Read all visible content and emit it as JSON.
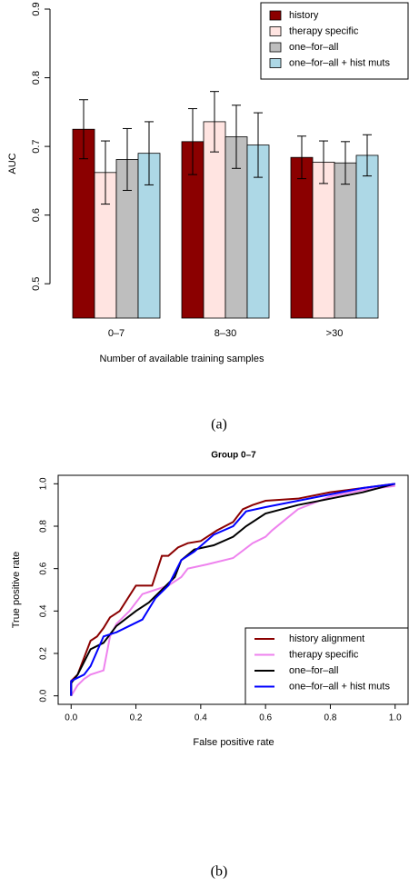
{
  "chart_data": [
    {
      "type": "bar",
      "y_label": "AUC",
      "x_label": "Number of available training samples",
      "caption": "(a)",
      "categories": [
        "0–7",
        "8–30",
        ">30"
      ],
      "series": [
        {
          "name": "history",
          "color": "#8b0000",
          "values": [
            0.725,
            0.707,
            0.684
          ],
          "errors": [
            0.043,
            0.048,
            0.031
          ]
        },
        {
          "name": "therapy specific",
          "color": "#ffe4e1",
          "values": [
            0.662,
            0.736,
            0.677
          ],
          "errors": [
            0.046,
            0.044,
            0.031
          ]
        },
        {
          "name": "one–for–all",
          "color": "#bebebe",
          "values": [
            0.681,
            0.714,
            0.676
          ],
          "errors": [
            0.045,
            0.046,
            0.031
          ]
        },
        {
          "name": "one–for–all + hist muts",
          "color": "#add8e6",
          "values": [
            0.69,
            0.702,
            0.687
          ],
          "errors": [
            0.046,
            0.047,
            0.03
          ]
        }
      ],
      "ylim": [
        0.45,
        0.9
      ],
      "yticks": [
        0.5,
        0.6,
        0.7,
        0.8,
        0.9
      ],
      "legend": "top-right"
    },
    {
      "type": "line",
      "title": "Group 0–7",
      "x_label": "False positive rate",
      "y_label": "True positive rate",
      "caption": "(b)",
      "series": [
        {
          "name": "history alignment",
          "color": "#8b0000",
          "x": [
            0,
            0,
            0.02,
            0.04,
            0.06,
            0.08,
            0.1,
            0.12,
            0.15,
            0.2,
            0.25,
            0.28,
            0.3,
            0.33,
            0.36,
            0.4,
            0.45,
            0.5,
            0.53,
            0.56,
            0.6,
            0.7,
            0.8,
            0.9,
            1.0
          ],
          "values": [
            0,
            0.07,
            0.1,
            0.18,
            0.26,
            0.28,
            0.32,
            0.37,
            0.4,
            0.52,
            0.52,
            0.66,
            0.66,
            0.7,
            0.72,
            0.73,
            0.78,
            0.82,
            0.88,
            0.9,
            0.92,
            0.93,
            0.96,
            0.98,
            1.0
          ]
        },
        {
          "name": "therapy specific",
          "color": "#ee82ee",
          "x": [
            0,
            0.02,
            0.04,
            0.06,
            0.1,
            0.12,
            0.14,
            0.18,
            0.22,
            0.26,
            0.3,
            0.34,
            0.36,
            0.42,
            0.5,
            0.56,
            0.6,
            0.62,
            0.7,
            0.8,
            0.9,
            1.0
          ],
          "values": [
            0,
            0.05,
            0.08,
            0.1,
            0.12,
            0.28,
            0.34,
            0.4,
            0.48,
            0.5,
            0.52,
            0.56,
            0.6,
            0.62,
            0.65,
            0.72,
            0.75,
            0.78,
            0.88,
            0.94,
            0.97,
            0.99
          ]
        },
        {
          "name": "one–for–all",
          "color": "#000000",
          "x": [
            0,
            0,
            0.02,
            0.06,
            0.1,
            0.14,
            0.2,
            0.24,
            0.28,
            0.32,
            0.34,
            0.38,
            0.44,
            0.5,
            0.54,
            0.6,
            0.7,
            0.8,
            0.9,
            1.0
          ],
          "values": [
            0,
            0.06,
            0.1,
            0.22,
            0.25,
            0.33,
            0.4,
            0.44,
            0.5,
            0.56,
            0.64,
            0.69,
            0.71,
            0.75,
            0.8,
            0.86,
            0.9,
            0.93,
            0.96,
            1.0
          ]
        },
        {
          "name": "one–for–all + hist muts",
          "color": "#0000ff",
          "x": [
            0,
            0,
            0.04,
            0.06,
            0.1,
            0.14,
            0.18,
            0.22,
            0.26,
            0.3,
            0.34,
            0.38,
            0.44,
            0.5,
            0.54,
            0.6,
            0.7,
            0.8,
            0.9,
            1.0
          ],
          "values": [
            0,
            0.07,
            0.1,
            0.14,
            0.28,
            0.3,
            0.33,
            0.36,
            0.46,
            0.52,
            0.64,
            0.68,
            0.76,
            0.8,
            0.87,
            0.89,
            0.92,
            0.95,
            0.98,
            1.0
          ]
        }
      ],
      "xlim": [
        -0.04,
        1.04
      ],
      "ylim": [
        -0.04,
        1.04
      ],
      "xticks": [
        {
          "value": 0,
          "label": "0.0"
        },
        0.2,
        0.4,
        0.6,
        0.8,
        {
          "value": 1,
          "label": "1.0"
        }
      ],
      "yticks": [
        {
          "value": 0,
          "label": "0.0"
        },
        0.2,
        0.4,
        0.6,
        0.8,
        {
          "value": 1,
          "label": "1.0"
        }
      ],
      "legend": "bottom-right"
    }
  ]
}
